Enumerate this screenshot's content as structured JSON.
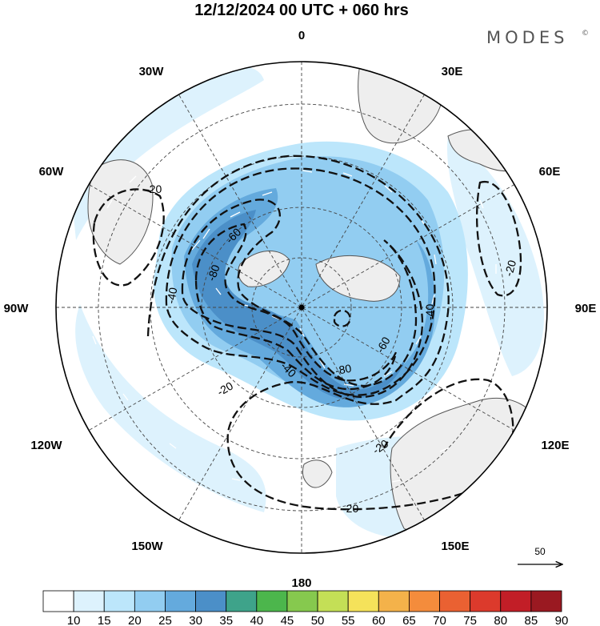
{
  "title": "12/12/2024  00 UTC  + 060 hrs",
  "brand": "MODES",
  "brand_mark": "©",
  "longitude_labels": [
    "0",
    "30E",
    "60E",
    "90E",
    "120E",
    "150E",
    "180",
    "150W",
    "120W",
    "90W",
    "60W",
    "30W"
  ],
  "contour_labels": [
    "-20",
    "-20",
    "-20",
    "-20",
    "-20",
    "-40",
    "-40",
    "-40",
    "-60",
    "-60",
    "-80",
    "-80"
  ],
  "colorbar": {
    "ticks": [
      "10",
      "15",
      "20",
      "25",
      "30",
      "35",
      "40",
      "45",
      "50",
      "55",
      "60",
      "65",
      "70",
      "75",
      "80",
      "85",
      "90"
    ],
    "colors": [
      "#ffffff",
      "#ddf2fd",
      "#bce6fb",
      "#92cdf1",
      "#64aadd",
      "#4b8fc8",
      "#3ea38a",
      "#4cb64c",
      "#86c94e",
      "#c4df56",
      "#f5e25a",
      "#f4b24a",
      "#f48c3c",
      "#ea6132",
      "#dc3a2c",
      "#c21e27",
      "#9a1921"
    ]
  },
  "reference_vector": {
    "label": "50"
  },
  "colors": {
    "land": "#eeeeee",
    "coast": "#555555",
    "grid": "#444444",
    "contour": "#111111"
  }
}
